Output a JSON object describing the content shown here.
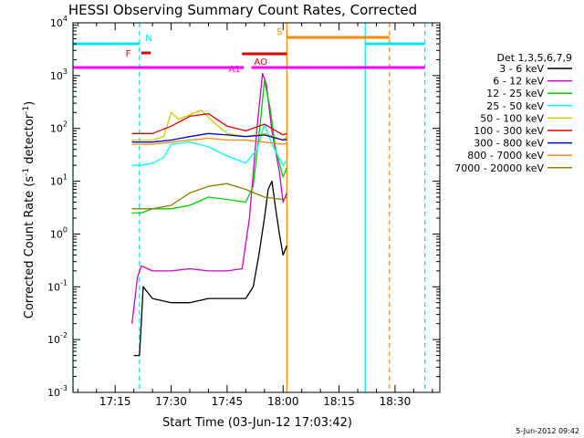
{
  "chart_data": {
    "type": "line",
    "title": "HESSI Observing Summary Count Rates, Corrected",
    "xlabel": "Start Time (03-Jun-12 17:03:42)",
    "ylabel": "Corrected Count Rate (s⁻¹ detector⁻¹)",
    "ylabel_main": "Corrected Count Rate (s",
    "ylabel_sup1": "-1",
    "ylabel_mid": " detector",
    "ylabel_sup2": "-1",
    "ylabel_end": ")",
    "xlim": [
      "17:03:42",
      "18:42:00"
    ],
    "ylim": [
      0.001,
      10000
    ],
    "y_scale": "log",
    "x_tick_labels": [
      "17:15",
      "17:30",
      "17:45",
      "18:00",
      "18:15",
      "18:30"
    ],
    "y_tick_labels": [
      {
        "base": "10",
        "exp": "-3"
      },
      {
        "base": "10",
        "exp": "-2"
      },
      {
        "base": "10",
        "exp": "-1"
      },
      {
        "base": "10",
        "exp": "0"
      },
      {
        "base": "10",
        "exp": "1"
      },
      {
        "base": "10",
        "exp": "2"
      },
      {
        "base": "10",
        "exp": "3"
      },
      {
        "base": "10",
        "exp": "4"
      }
    ],
    "legend_title": "Det 1,3,5,6,7,9",
    "legend_position": "right",
    "footer_date": "5-Jun-2012 09:42",
    "series": [
      {
        "name": "3 - 6 keV",
        "color": "#000000",
        "x": [
          "17:20:00",
          "17:21:30",
          "17:22:00",
          "17:22:30",
          "17:25:00",
          "17:30:00",
          "17:35:00",
          "17:40:00",
          "17:45:00",
          "17:50:00",
          "17:52:00",
          "17:53:30",
          "17:55:00",
          "17:56:00",
          "17:57:00",
          "17:58:00",
          "17:59:00",
          "18:00:00",
          "18:01:00"
        ],
        "y": [
          0.005,
          0.005,
          0.02,
          0.1,
          0.06,
          0.05,
          0.05,
          0.06,
          0.06,
          0.06,
          0.1,
          0.4,
          2,
          7,
          10,
          3,
          1,
          0.4,
          0.6
        ]
      },
      {
        "name": "6 - 12 keV",
        "color": "#cc00cc",
        "x": [
          "17:19:30",
          "17:21:00",
          "17:22:00",
          "17:25:00",
          "17:30:00",
          "17:35:00",
          "17:40:00",
          "17:45:00",
          "17:49:00",
          "17:51:00",
          "17:53:00",
          "17:54:30",
          "17:55:30",
          "17:57:00",
          "17:59:00",
          "18:00:00",
          "18:01:00"
        ],
        "y": [
          0.02,
          0.15,
          0.25,
          0.2,
          0.2,
          0.22,
          0.2,
          0.2,
          0.22,
          2,
          100,
          1100,
          700,
          90,
          15,
          4,
          6
        ]
      },
      {
        "name": "12 - 25 keV",
        "color": "#00cc00",
        "x": [
          "17:19:30",
          "17:22:00",
          "17:25:00",
          "17:30:00",
          "17:35:00",
          "17:40:00",
          "17:45:00",
          "17:50:00",
          "17:52:00",
          "17:54:00",
          "17:55:00",
          "17:56:30",
          "17:58:00",
          "18:00:00",
          "18:01:00"
        ],
        "y": [
          2.5,
          2.5,
          3,
          3,
          3.5,
          5,
          4.5,
          4,
          8,
          150,
          800,
          250,
          40,
          12,
          18
        ]
      },
      {
        "name": "25 - 50 keV",
        "color": "#00ffff",
        "x": [
          "17:19:30",
          "17:22:00",
          "17:25:00",
          "17:28:00",
          "17:30:00",
          "17:35:00",
          "17:40:00",
          "17:45:00",
          "17:50:00",
          "17:53:00",
          "17:55:00",
          "17:57:00",
          "18:00:00",
          "18:01:00"
        ],
        "y": [
          20,
          20,
          22,
          28,
          50,
          55,
          45,
          30,
          22,
          40,
          120,
          50,
          20,
          25
        ]
      },
      {
        "name": "50 - 100 keV",
        "color": "#cccc00",
        "x": [
          "17:19:30",
          "17:25:00",
          "17:28:00",
          "17:30:00",
          "17:32:00",
          "17:35:00",
          "17:38:00",
          "17:42:00",
          "17:45:00",
          "17:50:00",
          "17:55:00",
          "18:00:00",
          "18:01:00"
        ],
        "y": [
          60,
          60,
          70,
          200,
          150,
          180,
          220,
          120,
          80,
          70,
          80,
          60,
          70
        ]
      },
      {
        "name": "100 - 300 keV",
        "color": "#dd0000",
        "x": [
          "17:19:30",
          "17:25:00",
          "17:30:00",
          "17:35:00",
          "17:40:00",
          "17:45:00",
          "17:50:00",
          "17:55:00",
          "18:00:00",
          "18:01:00"
        ],
        "y": [
          80,
          80,
          110,
          170,
          190,
          110,
          90,
          120,
          75,
          80
        ]
      },
      {
        "name": "300 - 800 keV",
        "color": "#0000cc",
        "x": [
          "17:19:30",
          "17:25:00",
          "17:30:00",
          "17:35:00",
          "17:40:00",
          "17:45:00",
          "17:50:00",
          "17:55:00",
          "18:00:00",
          "18:01:00"
        ],
        "y": [
          55,
          55,
          60,
          70,
          80,
          75,
          70,
          75,
          60,
          62
        ]
      },
      {
        "name": "800 - 7000 keV",
        "color": "#ff8800",
        "x": [
          "17:19:30",
          "17:25:00",
          "17:30:00",
          "17:35:00",
          "17:40:00",
          "17:45:00",
          "17:50:00",
          "17:55:00",
          "18:00:00",
          "18:01:00"
        ],
        "y": [
          50,
          50,
          55,
          60,
          65,
          60,
          60,
          55,
          50,
          52
        ]
      },
      {
        "name": "7000 - 20000 keV",
        "color": "#8b7d00",
        "x": [
          "17:19:30",
          "17:22:00",
          "17:25:00",
          "17:30:00",
          "17:35:00",
          "17:40:00",
          "17:45:00",
          "17:50:00",
          "17:55:00",
          "18:00:00",
          "18:01:00"
        ],
        "y": [
          3,
          3,
          3,
          3.5,
          6,
          8,
          9,
          7,
          5,
          4.5,
          5
        ]
      }
    ],
    "flags": [
      {
        "label": "N",
        "color": "#00e5ee",
        "segments": [
          [
            "17:03:42",
            "17:21:30"
          ],
          [
            "18:22:00",
            "18:38:00"
          ]
        ]
      },
      {
        "label": "F",
        "color": "#dd0000",
        "segments": [
          [
            "17:22:00",
            "17:24:30"
          ]
        ]
      },
      {
        "label": "S",
        "color": "#ff8800",
        "segments": [
          [
            "18:01:00",
            "18:28:30"
          ]
        ]
      },
      {
        "label": "AO",
        "color": "#dd0000",
        "segments": [
          [
            "17:49:00",
            "18:01:00"
          ]
        ]
      },
      {
        "label": "A1",
        "color": "#ff00ff",
        "segments": [
          [
            "17:03:42",
            "17:49:30"
          ],
          [
            "17:51:30",
            "18:38:00"
          ]
        ]
      }
    ],
    "vertical_lines": [
      {
        "x": "17:03:42",
        "color": "#00e5ee",
        "style": "solid"
      },
      {
        "x": "17:21:30",
        "color": "#00e5ee",
        "style": "dashed"
      },
      {
        "x": "18:01:00",
        "color": "#ff8800",
        "style": "solid"
      },
      {
        "x": "18:22:00",
        "color": "#00e5ee",
        "style": "solid"
      },
      {
        "x": "18:28:30",
        "color": "#ff8800",
        "style": "dashed"
      },
      {
        "x": "18:38:00",
        "color": "#00e5ee",
        "style": "dashed"
      }
    ]
  }
}
